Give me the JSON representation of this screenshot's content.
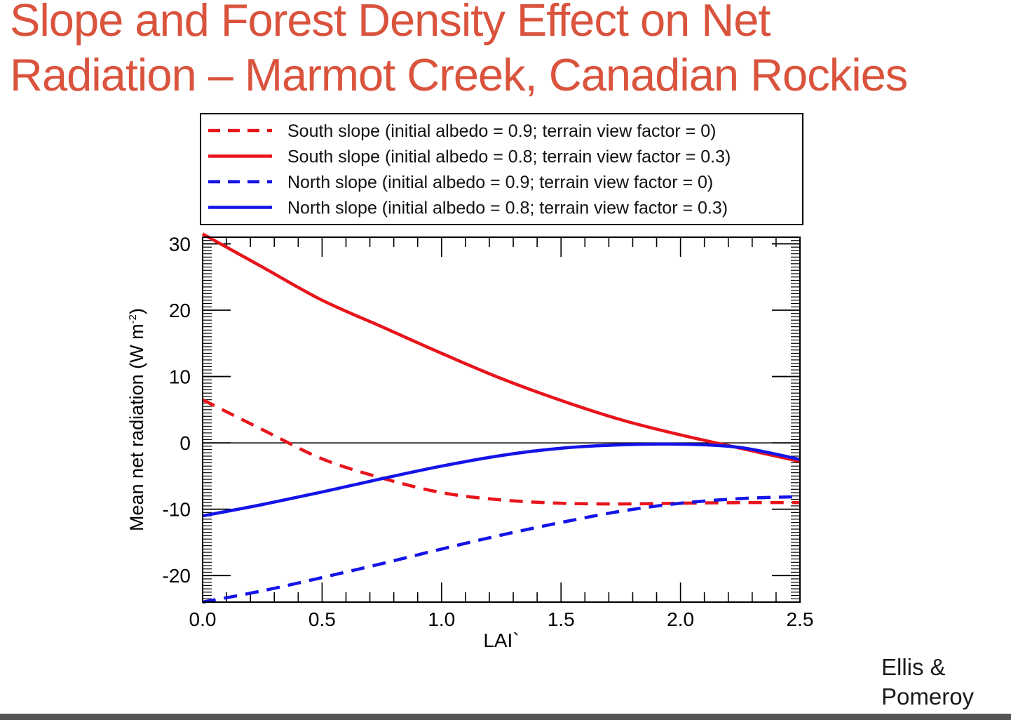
{
  "slide": {
    "title_line1": "Slope and Forest Density Effect on Net",
    "title_line2": "Radiation – Marmot Creek, Canadian Rockies",
    "credit_line1": "Ellis &",
    "credit_line2": "Pomeroy",
    "title_color": "#d9533d"
  },
  "chart_data": {
    "type": "line",
    "xlabel": "LAI`",
    "ylabel": "Mean net radiation (W m",
    "ylabel_sup": "-2",
    "ylabel_close": ")",
    "xlim": [
      0,
      2.5
    ],
    "ylim": [
      -24,
      31
    ],
    "xticks": [
      "0.0",
      "0.5",
      "1.0",
      "1.5",
      "2.0",
      "2.5"
    ],
    "yticks": [
      "-20",
      "-10",
      "0",
      "10",
      "20",
      "30"
    ],
    "zero_line": true,
    "legend_position": "top (above plot, boxed)",
    "series": [
      {
        "name": "South slope (initial albedo = 0.9; terrain view factor = 0)",
        "color": "#e8141b",
        "dash": true,
        "x": [
          0,
          0.25,
          0.5,
          0.75,
          1.0,
          1.25,
          1.5,
          1.75,
          2.0,
          2.25,
          2.5
        ],
        "y": [
          6.5,
          2.0,
          -2.4,
          -5.3,
          -7.5,
          -8.6,
          -9.1,
          -9.2,
          -9.1,
          -9.0,
          -9.0
        ]
      },
      {
        "name": "South slope (initial albedo = 0.8; terrain view factor = 0.3)",
        "color": "#e8141b",
        "dash": false,
        "x": [
          0,
          0.25,
          0.5,
          0.75,
          1.0,
          1.25,
          1.5,
          1.75,
          2.0,
          2.25,
          2.5
        ],
        "y": [
          31.5,
          26.5,
          21.5,
          17.5,
          13.5,
          9.7,
          6.4,
          3.5,
          1.2,
          -0.8,
          -2.8
        ]
      },
      {
        "name": "North slope (initial albedo = 0.9; terrain view factor = 0)",
        "color": "#1414e8",
        "dash": true,
        "x": [
          0,
          0.25,
          0.5,
          0.75,
          1.0,
          1.25,
          1.5,
          1.75,
          2.0,
          2.25,
          2.5
        ],
        "y": [
          -24.0,
          -22.3,
          -20.3,
          -18.2,
          -16.0,
          -13.9,
          -12.0,
          -10.3,
          -9.1,
          -8.4,
          -8.1
        ]
      },
      {
        "name": "North slope (initial albedo = 0.8; terrain view factor = 0.3)",
        "color": "#1414e8",
        "dash": false,
        "x": [
          0,
          0.25,
          0.5,
          0.75,
          1.0,
          1.25,
          1.5,
          1.75,
          2.0,
          2.25,
          2.5
        ],
        "y": [
          -11.0,
          -9.3,
          -7.4,
          -5.4,
          -3.5,
          -1.9,
          -0.8,
          -0.3,
          -0.2,
          -0.7,
          -2.5
        ]
      }
    ]
  }
}
